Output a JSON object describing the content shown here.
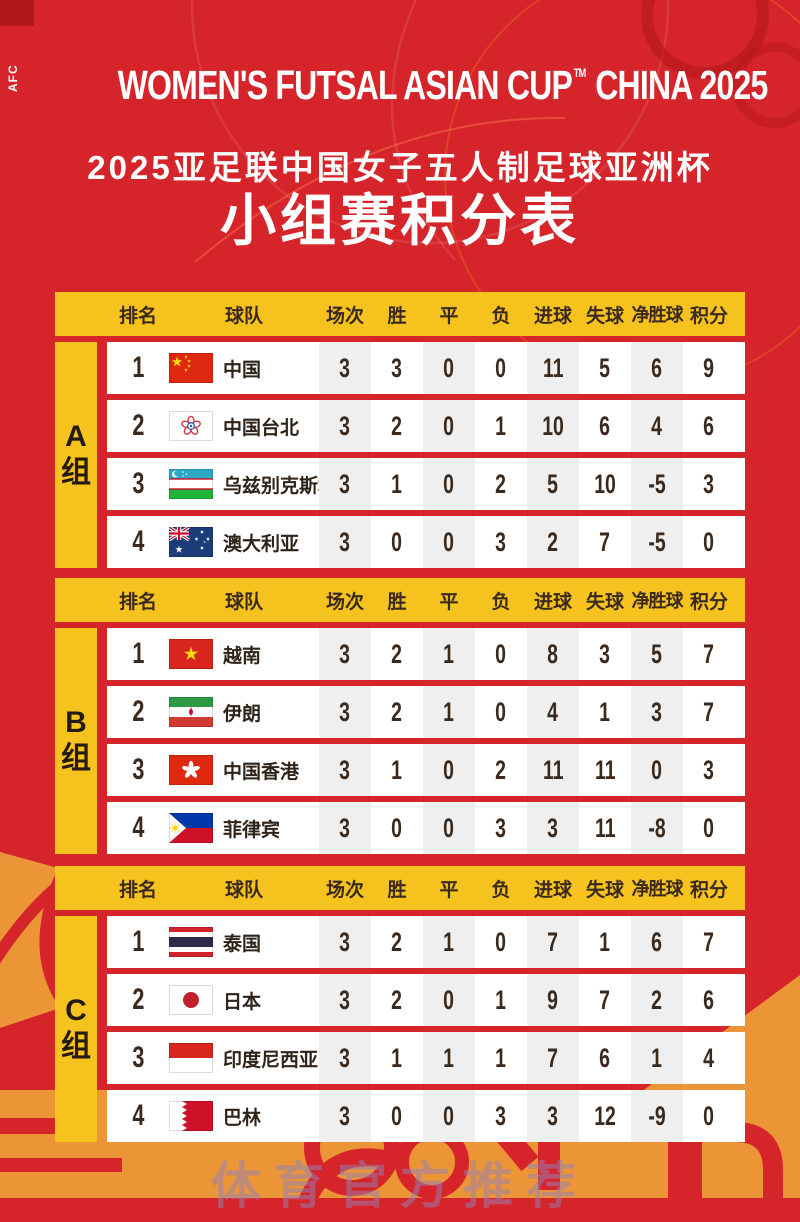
{
  "poster": {
    "afc_label": "AFC",
    "title_en_main": "WOMEN'S FUTSAL ASIAN CUP",
    "title_tm": "TM",
    "title_en_host": "CHINA 2025",
    "title_cn": "2025亚足联中国女子五人制足球亚洲杯",
    "main_title": "小组赛积分表",
    "watermark": "体育官方推荐"
  },
  "colors": {
    "background_red": "#D6242B",
    "panel_yellow": "#F6C31E",
    "row_white": "#FFFFFF",
    "stripe_gray": "#EFEFEF",
    "text_dark": "#3A291D",
    "accent_orange": "#EC9537",
    "watermark_purple": "#947EB2"
  },
  "table": {
    "headers": [
      "排名",
      "球队",
      "场次",
      "胜",
      "平",
      "负",
      "进球",
      "失球",
      "净胜球",
      "积分"
    ],
    "groups": [
      {
        "key": "a",
        "label": "A组",
        "rows": [
          {
            "rank": "1",
            "team": "中国",
            "flag": "china",
            "stats": [
              "3",
              "3",
              "0",
              "0",
              "11",
              "5",
              "6",
              "9"
            ]
          },
          {
            "rank": "2",
            "team": "中国台北",
            "flag": "chinese-taipei",
            "stats": [
              "3",
              "2",
              "0",
              "1",
              "10",
              "6",
              "4",
              "6"
            ]
          },
          {
            "rank": "3",
            "team": "乌兹别克斯坦",
            "flag": "uzbekistan",
            "stats": [
              "3",
              "1",
              "0",
              "2",
              "5",
              "10",
              "-5",
              "3"
            ]
          },
          {
            "rank": "4",
            "team": "澳大利亚",
            "flag": "australia",
            "stats": [
              "3",
              "0",
              "0",
              "3",
              "2",
              "7",
              "-5",
              "0"
            ]
          }
        ]
      },
      {
        "key": "b",
        "label": "B组",
        "rows": [
          {
            "rank": "1",
            "team": "越南",
            "flag": "vietnam",
            "stats": [
              "3",
              "2",
              "1",
              "0",
              "8",
              "3",
              "5",
              "7"
            ]
          },
          {
            "rank": "2",
            "team": "伊朗",
            "flag": "iran",
            "stats": [
              "3",
              "2",
              "1",
              "0",
              "4",
              "1",
              "3",
              "7"
            ]
          },
          {
            "rank": "3",
            "team": "中国香港",
            "flag": "hong-kong-china",
            "stats": [
              "3",
              "1",
              "0",
              "2",
              "11",
              "11",
              "0",
              "3"
            ]
          },
          {
            "rank": "4",
            "team": "菲律宾",
            "flag": "philippines",
            "stats": [
              "3",
              "0",
              "0",
              "3",
              "3",
              "11",
              "-8",
              "0"
            ]
          }
        ]
      },
      {
        "key": "c",
        "label": "C组",
        "rows": [
          {
            "rank": "1",
            "team": "泰国",
            "flag": "thailand",
            "stats": [
              "3",
              "2",
              "1",
              "0",
              "7",
              "1",
              "6",
              "7"
            ]
          },
          {
            "rank": "2",
            "team": "日本",
            "flag": "japan",
            "stats": [
              "3",
              "2",
              "0",
              "1",
              "9",
              "7",
              "2",
              "6"
            ]
          },
          {
            "rank": "3",
            "team": "印度尼西亚",
            "flag": "indonesia",
            "stats": [
              "3",
              "1",
              "1",
              "1",
              "7",
              "6",
              "1",
              "4"
            ]
          },
          {
            "rank": "4",
            "team": "巴林",
            "flag": "bahrain",
            "stats": [
              "3",
              "0",
              "0",
              "3",
              "3",
              "12",
              "-9",
              "0"
            ]
          }
        ]
      }
    ]
  }
}
